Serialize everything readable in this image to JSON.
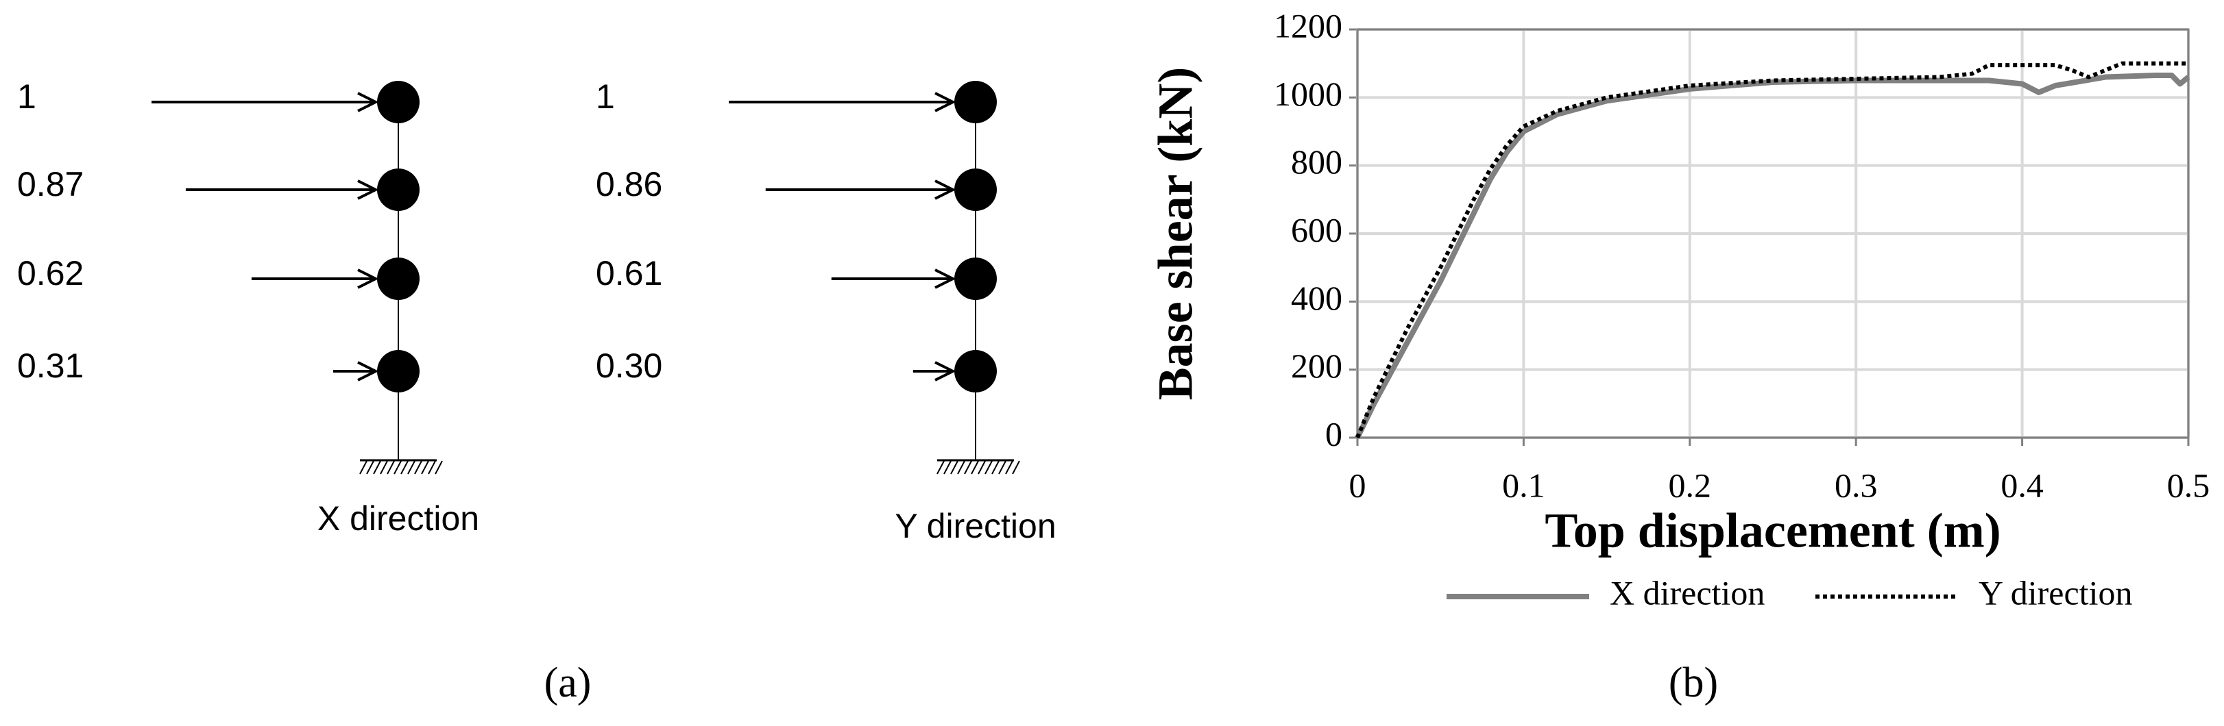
{
  "panel_a": {
    "diagrams": [
      {
        "label": "X direction",
        "loads": [
          1,
          0.87,
          0.62,
          0.31
        ]
      },
      {
        "label": "Y direction",
        "loads": [
          1,
          0.86,
          0.61,
          {
            "value": 0.3,
            "label": "0.30"
          }
        ]
      }
    ],
    "caption": "(a)"
  },
  "chart_data": {
    "type": "line",
    "caption": "(b)",
    "x_label": "Top displacement (m)",
    "y_label": "Base shear (kN)",
    "xlim": [
      0,
      0.5
    ],
    "xticks": [
      0,
      0.1,
      0.2,
      0.3,
      0.4,
      0.5
    ],
    "ylim": [
      0,
      1200
    ],
    "yticks": [
      0,
      200,
      400,
      600,
      800,
      1000,
      1200
    ],
    "grid": true,
    "legend": "bottom",
    "series": [
      {
        "name": "X direction",
        "color": "#808080",
        "style": "solid",
        "x": [
          0,
          0.01,
          0.02,
          0.03,
          0.04,
          0.05,
          0.06,
          0.07,
          0.08,
          0.09,
          0.1,
          0.12,
          0.15,
          0.2,
          0.25,
          0.3,
          0.35,
          0.38,
          0.4,
          0.41,
          0.42,
          0.45,
          0.48,
          0.49,
          0.495,
          0.5
        ],
        "values": [
          0,
          100,
          190,
          280,
          370,
          460,
          560,
          660,
          760,
          840,
          900,
          950,
          990,
          1025,
          1045,
          1050,
          1050,
          1050,
          1040,
          1015,
          1035,
          1060,
          1065,
          1065,
          1040,
          1060
        ]
      },
      {
        "name": "Y direction",
        "color": "#000000",
        "style": "dotted",
        "x": [
          0,
          0.01,
          0.02,
          0.03,
          0.04,
          0.05,
          0.06,
          0.07,
          0.08,
          0.09,
          0.1,
          0.12,
          0.15,
          0.2,
          0.25,
          0.3,
          0.35,
          0.37,
          0.38,
          0.42,
          0.43,
          0.44,
          0.45,
          0.46,
          0.5
        ],
        "values": [
          0,
          120,
          220,
          320,
          410,
          500,
          600,
          700,
          790,
          860,
          915,
          960,
          1000,
          1035,
          1050,
          1055,
          1060,
          1070,
          1095,
          1095,
          1080,
          1060,
          1080,
          1100,
          1100
        ]
      }
    ]
  }
}
